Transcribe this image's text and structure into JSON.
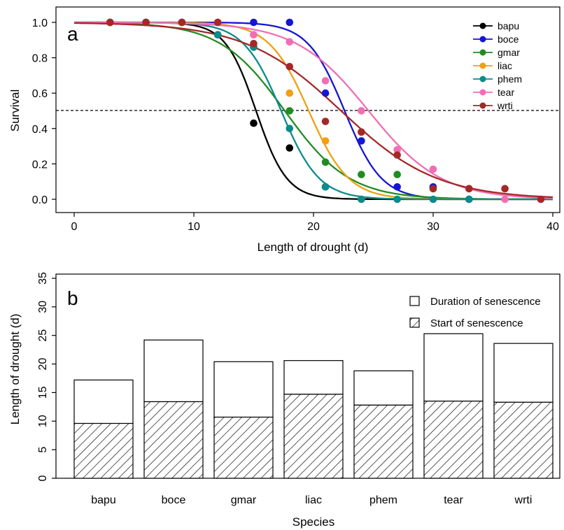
{
  "chart_data": [
    {
      "panel_label": "a",
      "type": "scatter",
      "xlabel": "Length of drought (d)",
      "ylabel": "Survival",
      "xlim": [
        0,
        40
      ],
      "ylim": [
        0,
        1
      ],
      "xticks": [
        "0",
        "10",
        "20",
        "30",
        "40"
      ],
      "yticks": [
        "0.0",
        "0.2",
        "0.4",
        "0.6",
        "0.8",
        "1.0"
      ],
      "reference_line": {
        "y": 0.5,
        "style": "dashed"
      },
      "legend_position": "top-right",
      "fitted_curves": "logistic",
      "series": [
        {
          "name": "bapu",
          "color": "#000000",
          "x": [
            3,
            6,
            9,
            12,
            15,
            18,
            21
          ],
          "y": [
            1.0,
            1.0,
            1.0,
            0.93,
            0.43,
            0.29,
            0.07
          ],
          "curve": {
            "x50": 15.2,
            "slope": 0.78
          }
        },
        {
          "name": "boce",
          "color": "#1515d4",
          "x": [
            3,
            6,
            9,
            12,
            15,
            18,
            21,
            24,
            27,
            30,
            33
          ],
          "y": [
            1.0,
            1.0,
            1.0,
            1.0,
            1.0,
            1.0,
            0.6,
            0.33,
            0.07,
            0.07,
            0.0
          ],
          "curve": {
            "x50": 22.6,
            "slope": 0.65
          }
        },
        {
          "name": "gmar",
          "color": "#238b23",
          "x": [
            3,
            6,
            9,
            12,
            15,
            18,
            21,
            24,
            27
          ],
          "y": [
            1.0,
            1.0,
            1.0,
            0.93,
            0.86,
            0.5,
            0.21,
            0.14,
            0.14
          ],
          "curve": {
            "x50": 17.6,
            "slope": 0.37
          }
        },
        {
          "name": "liac",
          "color": "#f0a010",
          "x": [
            3,
            6,
            9,
            12,
            15,
            18,
            21,
            24
          ],
          "y": [
            1.0,
            1.0,
            1.0,
            1.0,
            0.93,
            0.6,
            0.33,
            0.0
          ],
          "curve": {
            "x50": 19.6,
            "slope": 0.6
          }
        },
        {
          "name": "phem",
          "color": "#0b8b8b",
          "x": [
            3,
            6,
            9,
            12,
            15,
            18,
            21,
            24,
            27,
            30,
            33
          ],
          "y": [
            1.0,
            1.0,
            1.0,
            0.93,
            0.86,
            0.4,
            0.07,
            0.0,
            0.0,
            0.0,
            0.0
          ],
          "curve": {
            "x50": 17.3,
            "slope": 0.63
          }
        },
        {
          "name": "tear",
          "color": "#f06fb4",
          "x": [
            3,
            6,
            9,
            12,
            15,
            18,
            21,
            24,
            27,
            30,
            33,
            36
          ],
          "y": [
            1.0,
            1.0,
            1.0,
            1.0,
            0.93,
            0.89,
            0.67,
            0.5,
            0.28,
            0.17,
            0.06,
            0.0
          ],
          "curve": {
            "x50": 24.6,
            "slope": 0.33
          }
        },
        {
          "name": "wrti",
          "color": "#a52828",
          "x": [
            3,
            6,
            9,
            12,
            15,
            18,
            21,
            24,
            27,
            30,
            33,
            36,
            39
          ],
          "y": [
            1.0,
            1.0,
            1.0,
            1.0,
            0.88,
            0.75,
            0.44,
            0.38,
            0.25,
            0.06,
            0.06,
            0.06,
            0.0
          ],
          "curve": {
            "x50": 22.3,
            "slope": 0.25
          }
        }
      ]
    },
    {
      "panel_label": "b",
      "type": "bar",
      "xlabel": "Species",
      "ylabel": "Length of drought (d)",
      "ylim": [
        0,
        35
      ],
      "yticks": [
        "0",
        "5",
        "10",
        "15",
        "20",
        "25",
        "30",
        "35"
      ],
      "categories": [
        "bapu",
        "boce",
        "gmar",
        "liac",
        "phem",
        "tear",
        "wrti"
      ],
      "stacked": true,
      "legend_position": "top-right",
      "series": [
        {
          "name": "Start of senescence",
          "pattern": "hatched",
          "values": [
            9.6,
            13.4,
            10.7,
            14.7,
            12.8,
            13.5,
            13.3
          ]
        },
        {
          "name": "Duration of senescence",
          "pattern": "open",
          "values": [
            7.6,
            10.8,
            9.7,
            5.9,
            6.0,
            11.8,
            10.3
          ]
        }
      ],
      "totals": [
        17.2,
        24.2,
        20.4,
        20.6,
        18.8,
        25.3,
        23.6
      ]
    }
  ]
}
